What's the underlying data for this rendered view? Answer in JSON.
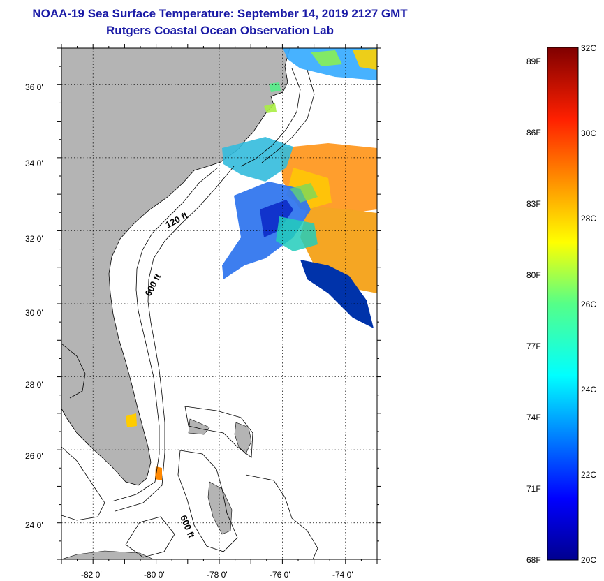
{
  "header": {
    "title": "NOAA-19 Sea Surface Temperature:  September 14, 2019 2127 GMT",
    "subtitle": "Rutgers Coastal Ocean Observation Lab"
  },
  "map": {
    "lon_ticks": [
      "-82 0'",
      "-80 0'",
      "-78 0'",
      "-76 0'",
      "-74 0'"
    ],
    "lat_ticks": [
      "36 0'",
      "34 0'",
      "32 0'",
      "30 0'",
      "28 0'",
      "26 0'",
      "24 0'"
    ],
    "lon_range": [
      -83,
      -73
    ],
    "lat_range": [
      23,
      37
    ],
    "grid": true,
    "land_color": "#b4b4b4",
    "contour_labels": [
      "120 ft",
      "600 ft",
      "600 ft"
    ]
  },
  "colorbar": {
    "fahrenheit": [
      "89F",
      "86F",
      "83F",
      "80F",
      "77F",
      "74F",
      "71F",
      "68F"
    ],
    "celsius": [
      "32C",
      "30C",
      "28C",
      "26C",
      "24C",
      "22C",
      "20C"
    ],
    "range_c": [
      20,
      32
    ]
  }
}
